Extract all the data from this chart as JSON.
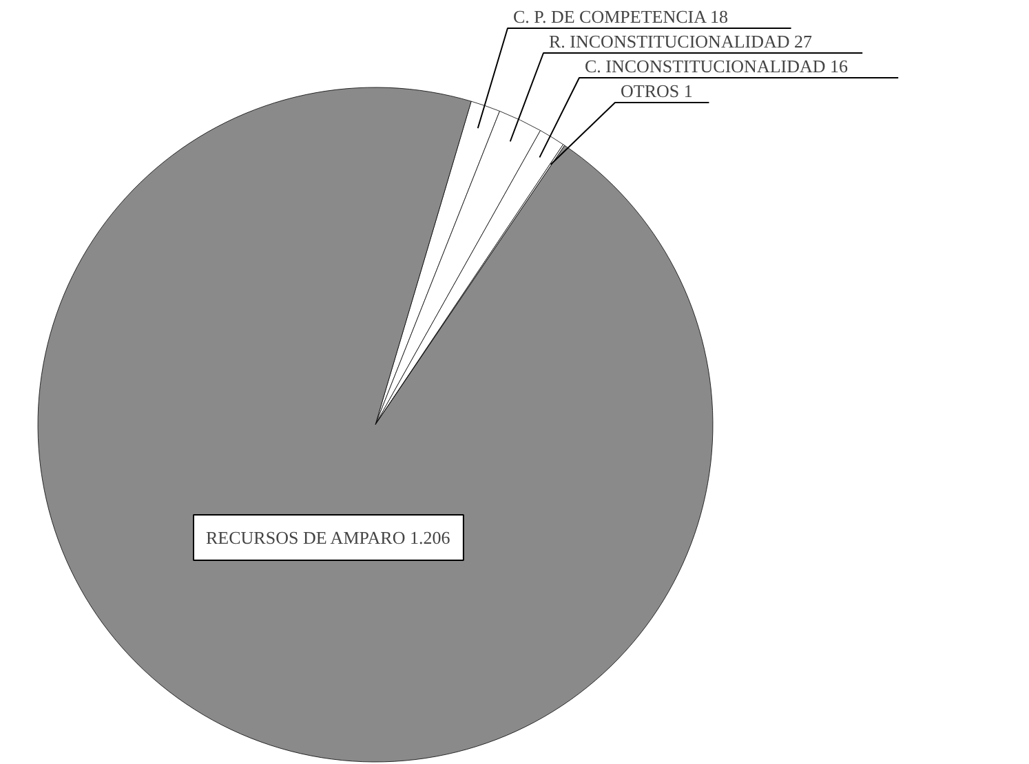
{
  "chart_data": {
    "type": "pie",
    "categories": [
      "C. P. DE COMPETENCIA",
      "R. INCONSTITUCIONALIDAD",
      "C. INCONSTITUCIONALIDAD",
      "OTROS",
      "RECURSOS DE AMPARO"
    ],
    "values": [
      18,
      27,
      16,
      1,
      1206
    ],
    "value_labels": [
      "18",
      "27",
      "16",
      "1",
      "1.206"
    ],
    "colors": [
      "#ffffff",
      "#ffffff",
      "#ffffff",
      "#ffffff",
      "#8a8a8a"
    ]
  }
}
